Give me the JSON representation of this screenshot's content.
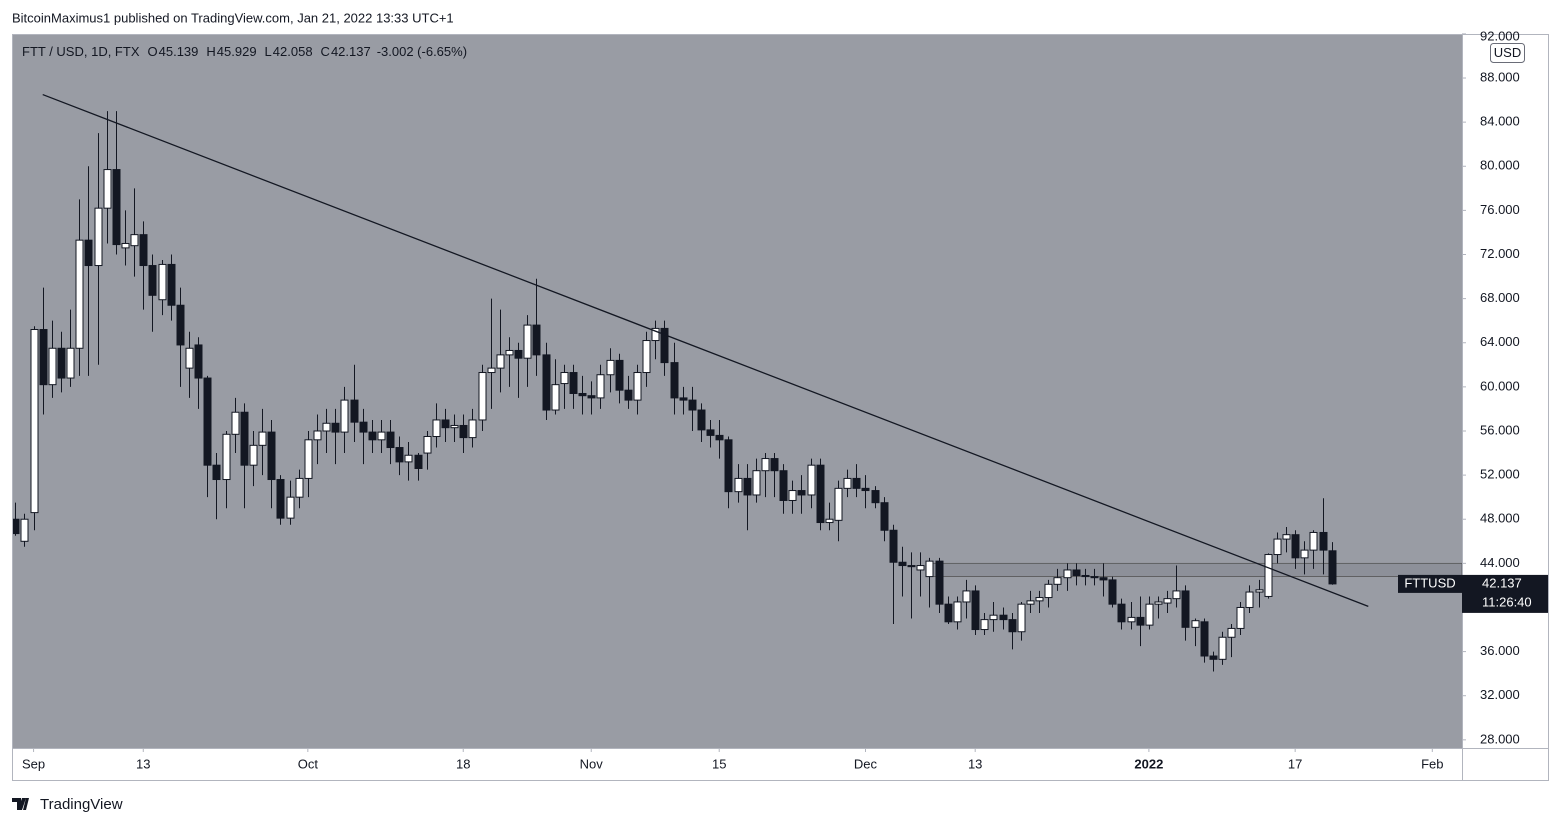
{
  "header": {
    "text": "BitcoinMaximus1 published on TradingView.com, Jan 21, 2022 13:33 UTC+1"
  },
  "footer": {
    "brand": "TradingView"
  },
  "chart_data": {
    "type": "candlestick",
    "title": "FTT / USD, 1D, FTX",
    "ohlc_header": [
      {
        "label": "O",
        "value": "45.139"
      },
      {
        "label": "H",
        "value": "45.929"
      },
      {
        "label": "L",
        "value": "42.058"
      },
      {
        "label": "C",
        "value": "42.137"
      }
    ],
    "change": "-3.002 (-6.65%)",
    "currency": "USD",
    "symbol": "FTTUSD",
    "last_price": "42.137",
    "countdown": "11:26:40",
    "up_color": "#ffffff",
    "down_color": "#131722",
    "background": "#999ca4",
    "x": [
      "2021-08-30",
      "2021-08-31",
      "2021-09-01",
      "2021-09-02",
      "2021-09-03",
      "2021-09-04",
      "2021-09-05",
      "2021-09-06",
      "2021-09-07",
      "2021-09-08",
      "2021-09-09",
      "2021-09-10",
      "2021-09-11",
      "2021-09-12",
      "2021-09-13",
      "2021-09-14",
      "2021-09-15",
      "2021-09-16",
      "2021-09-17",
      "2021-09-18",
      "2021-09-19",
      "2021-09-20",
      "2021-09-21",
      "2021-09-22",
      "2021-09-23",
      "2021-09-24",
      "2021-09-25",
      "2021-09-26",
      "2021-09-27",
      "2021-09-28",
      "2021-09-29",
      "2021-09-30",
      "2021-10-01",
      "2021-10-02",
      "2021-10-03",
      "2021-10-04",
      "2021-10-05",
      "2021-10-06",
      "2021-10-07",
      "2021-10-08",
      "2021-10-09",
      "2021-10-10",
      "2021-10-11",
      "2021-10-12",
      "2021-10-13",
      "2021-10-14",
      "2021-10-15",
      "2021-10-16",
      "2021-10-17",
      "2021-10-18",
      "2021-10-19",
      "2021-10-20",
      "2021-10-21",
      "2021-10-22",
      "2021-10-23",
      "2021-10-24",
      "2021-10-25",
      "2021-10-26",
      "2021-10-27",
      "2021-10-28",
      "2021-10-29",
      "2021-10-30",
      "2021-10-31",
      "2021-11-01",
      "2021-11-02",
      "2021-11-03",
      "2021-11-04",
      "2021-11-05",
      "2021-11-06",
      "2021-11-07",
      "2021-11-08",
      "2021-11-09",
      "2021-11-10",
      "2021-11-11",
      "2021-11-12",
      "2021-11-13",
      "2021-11-14",
      "2021-11-15",
      "2021-11-16",
      "2021-11-17",
      "2021-11-18",
      "2021-11-19",
      "2021-11-20",
      "2021-11-21",
      "2021-11-22",
      "2021-11-23",
      "2021-11-24",
      "2021-11-25",
      "2021-11-26",
      "2021-11-27",
      "2021-11-28",
      "2021-11-29",
      "2021-11-30",
      "2021-12-01",
      "2021-12-02",
      "2021-12-03",
      "2021-12-04",
      "2021-12-05",
      "2021-12-06",
      "2021-12-07",
      "2021-12-08",
      "2021-12-09",
      "2021-12-10",
      "2021-12-11",
      "2021-12-12",
      "2021-12-13",
      "2021-12-14",
      "2021-12-15",
      "2021-12-16",
      "2021-12-17",
      "2021-12-18",
      "2021-12-19",
      "2021-12-20",
      "2021-12-21",
      "2021-12-22",
      "2021-12-23",
      "2021-12-24",
      "2021-12-25",
      "2021-12-26",
      "2021-12-27",
      "2021-12-28",
      "2021-12-29",
      "2021-12-30",
      "2021-12-31",
      "2022-01-01",
      "2022-01-02",
      "2022-01-03",
      "2022-01-04",
      "2022-01-05",
      "2022-01-06",
      "2022-01-07",
      "2022-01-08",
      "2022-01-09",
      "2022-01-10",
      "2022-01-11",
      "2022-01-12",
      "2022-01-13",
      "2022-01-14",
      "2022-01-15",
      "2022-01-16",
      "2022-01-17",
      "2022-01-18",
      "2022-01-19",
      "2022-01-20",
      "2022-01-21"
    ],
    "open": [
      48,
      46,
      48.6,
      65.2,
      60.2,
      63.5,
      60.8,
      63.5,
      73.3,
      71,
      76.2,
      79.7,
      72.6,
      72.8,
      73.8,
      71,
      67.9,
      71.1,
      67.4,
      61.7,
      63.8,
      60.8,
      52.9,
      51.6,
      55.7,
      57.7,
      52.9,
      54.7,
      55.9,
      51.6,
      48.1,
      50,
      51.7,
      55.2,
      56,
      56.7,
      55.9,
      58.8,
      56.8,
      55.9,
      55.2,
      55.9,
      54.5,
      53.2,
      53.8,
      54,
      55.5,
      57,
      56.3,
      56.5,
      55.4,
      57,
      61.3,
      61.7,
      62.9,
      63.3,
      62.6,
      65.6,
      62.9,
      57.9,
      60.3,
      61.3,
      59.4,
      59.2,
      59,
      61.1,
      62.4,
      59.7,
      58.8,
      61.3,
      64.2,
      65.3,
      62.2,
      59,
      58.8,
      57.9,
      56.1,
      55.6,
      55.2,
      50.5,
      51.7,
      50.2,
      52.4,
      53.5,
      52.4,
      49.7,
      50.6,
      50.2,
      52.9,
      47.7,
      47.9,
      50.8,
      51.7,
      50.8,
      50.6,
      49.5,
      47,
      44.1,
      43.8,
      43.4,
      42.8,
      44.2,
      40.3,
      38.7,
      40.5,
      41.5,
      38,
      38.9,
      39.3,
      38.9,
      37.8,
      40.3,
      40.6,
      40.9,
      42.1,
      42.7,
      43.4,
      42.9,
      42.8,
      42.7,
      42.5,
      40.3,
      38.7,
      39.1,
      38.4,
      40.3,
      40.4,
      40.8,
      41.5,
      38.2,
      38.7,
      35.6,
      35.3,
      37.3,
      38.1,
      40,
      41.4,
      41,
      44.8,
      46.2,
      46.6,
      44.5,
      45.2,
      46.8,
      45.139
    ],
    "high": [
      49.5,
      48.5,
      65.5,
      69,
      66,
      65,
      67,
      77,
      80,
      83,
      85,
      85,
      76,
      78,
      75,
      72,
      71.5,
      72,
      69,
      65,
      64.5,
      61,
      54,
      56,
      59,
      58.5,
      56,
      58,
      57,
      52,
      51.5,
      52.5,
      56,
      57.5,
      58,
      58,
      60,
      62,
      58,
      57,
      57,
      57,
      55.5,
      55,
      54,
      56,
      58.5,
      58,
      57.5,
      57.5,
      58,
      62,
      68,
      67,
      64.5,
      64,
      66.5,
      69.8,
      64,
      62.5,
      62,
      62,
      61,
      60.5,
      62,
      63.5,
      63,
      61,
      62,
      65,
      66,
      66,
      64,
      60,
      60,
      58.5,
      57,
      57,
      55.5,
      53,
      53,
      53.5,
      54,
      54,
      53,
      51.5,
      52,
      53.5,
      53.5,
      49.5,
      51.5,
      52.5,
      53,
      52,
      51,
      50,
      47.5,
      45.5,
      45,
      45,
      44.5,
      44.5,
      41,
      41,
      42.5,
      42,
      39.5,
      40.5,
      40,
      39.5,
      40.5,
      41.5,
      41.5,
      42.5,
      43.5,
      44,
      44,
      43.5,
      43.5,
      44,
      42.8,
      40.8,
      40.5,
      41,
      41,
      41,
      41.5,
      43.8,
      42,
      39,
      39,
      36,
      37.8,
      38.5,
      40.5,
      42,
      42.5,
      44.9,
      46.8,
      47.3,
      47,
      46,
      47,
      49.9,
      45.929
    ],
    "low": [
      46.5,
      45.5,
      47,
      57.5,
      59,
      59.5,
      60,
      61,
      61,
      62,
      73,
      72,
      71,
      70,
      67,
      65,
      66.5,
      66,
      60,
      59,
      58,
      50,
      48,
      49,
      54,
      49,
      51,
      52,
      49,
      47.5,
      47.5,
      49,
      50,
      53,
      54,
      53,
      54,
      55,
      53,
      54,
      54,
      53,
      52,
      51.5,
      51.5,
      52.5,
      54.5,
      55,
      55,
      54,
      54.5,
      56,
      58,
      59.5,
      60,
      59,
      60,
      61,
      57,
      57.5,
      58,
      58,
      57.5,
      57.5,
      58,
      59.5,
      58.5,
      58,
      57.5,
      60,
      62.5,
      61,
      57.5,
      57.5,
      56,
      55,
      54.5,
      53.5,
      49,
      49.5,
      47,
      49.5,
      50,
      50,
      48.5,
      48.5,
      48.5,
      49,
      47,
      47,
      46,
      50,
      50,
      49,
      49,
      46,
      38.5,
      41,
      39,
      41,
      40,
      39.5,
      38.5,
      38,
      39,
      37.5,
      37.5,
      37.8,
      38,
      36.2,
      37,
      39.5,
      39.5,
      40,
      41.5,
      41.5,
      42,
      42,
      42,
      41,
      40,
      38,
      38,
      36.5,
      38,
      39,
      39.5,
      40,
      37,
      36.5,
      35,
      34.2,
      34.8,
      35.5,
      37.5,
      39.5,
      40,
      40.8,
      44,
      45,
      43.5,
      43,
      43.5,
      43,
      42.058
    ],
    "close": [
      46.7,
      48,
      65.2,
      60.2,
      63.5,
      60.8,
      63.5,
      73.3,
      71,
      76.2,
      79.7,
      72.9,
      73,
      73.8,
      71,
      68.3,
      71.1,
      67.4,
      63.8,
      63.5,
      60.8,
      52.9,
      51.6,
      55.7,
      57.7,
      52.9,
      54.7,
      55.9,
      51.6,
      48.1,
      50,
      51.7,
      55.2,
      56,
      56.7,
      55.9,
      58.8,
      56.8,
      55.9,
      55.2,
      55.9,
      54.5,
      53.2,
      53.8,
      52.6,
      55.5,
      57,
      56.3,
      56.5,
      55.4,
      57,
      61.3,
      61.7,
      62.9,
      63.3,
      62.6,
      65.6,
      62.9,
      57.9,
      60.2,
      61.3,
      59.4,
      59.2,
      59,
      61.1,
      62.4,
      59.7,
      58.8,
      61.3,
      64.2,
      65.3,
      62.2,
      59,
      58.8,
      57.9,
      56.1,
      55.6,
      55.2,
      50.5,
      51.7,
      50.2,
      52.4,
      53.5,
      52.4,
      49.7,
      50.6,
      50.2,
      52.9,
      47.7,
      48,
      50.8,
      51.7,
      50.8,
      50.6,
      49.5,
      47,
      44.1,
      43.8,
      43.7,
      43.8,
      44.2,
      40.3,
      38.7,
      40.5,
      41.5,
      38,
      38.9,
      39.3,
      38.9,
      37.8,
      40.3,
      40.6,
      40.9,
      42.1,
      42.7,
      43.4,
      42.9,
      42.8,
      42.7,
      42.5,
      40.3,
      38.7,
      39.1,
      38.4,
      40.3,
      40.5,
      40.8,
      41.5,
      38.2,
      38.8,
      35.6,
      35.3,
      37.3,
      38.1,
      40,
      41.4,
      41.6,
      44.8,
      46.2,
      46.6,
      44.5,
      45.2,
      46.8,
      45.2,
      42.137
    ],
    "trendline": {
      "x": [
        "2021-09-02",
        "2022-01-25"
      ],
      "y": [
        86.5,
        40.1
      ]
    },
    "zone": {
      "x0": "2021-12-08",
      "y": [
        42.8,
        44
      ]
    },
    "xlim": [
      "2021-08-29T18:00",
      "2022-02-04T06:00"
    ],
    "ylim": [
      27.26,
      91.9
    ],
    "yticks": [
      {
        "value": 28,
        "label": "28.000"
      },
      {
        "value": 32,
        "label": "32.000"
      },
      {
        "value": 36,
        "label": "36.000"
      },
      {
        "value": 40,
        "label": "40.000"
      },
      {
        "value": 44,
        "label": "44.000"
      },
      {
        "value": 48,
        "label": "48.000"
      },
      {
        "value": 52,
        "label": "52.000"
      },
      {
        "value": 56,
        "label": "56.000"
      },
      {
        "value": 60,
        "label": "60.000"
      },
      {
        "value": 64,
        "label": "64.000"
      },
      {
        "value": 68,
        "label": "68.000"
      },
      {
        "value": 72,
        "label": "72.000"
      },
      {
        "value": 76,
        "label": "76.000"
      },
      {
        "value": 80,
        "label": "80.000"
      },
      {
        "value": 84,
        "label": "84.000"
      },
      {
        "value": 88,
        "label": "88.000"
      },
      {
        "value": 92,
        "label": "92.000"
      }
    ],
    "xticks": [
      {
        "value": "2021-09-01",
        "label": "Sep"
      },
      {
        "value": "2021-09-13",
        "label": "13"
      },
      {
        "value": "2021-10-01",
        "label": "Oct"
      },
      {
        "value": "2021-10-18",
        "label": "18"
      },
      {
        "value": "2021-11-01",
        "label": "Nov"
      },
      {
        "value": "2021-11-15",
        "label": "15"
      },
      {
        "value": "2021-12-01",
        "label": "Dec"
      },
      {
        "value": "2021-12-13",
        "label": "13"
      },
      {
        "value": "2022-01-01",
        "label": "2022"
      },
      {
        "value": "2022-01-17",
        "label": "17"
      },
      {
        "value": "2022-02-01",
        "label": "Feb"
      }
    ]
  }
}
